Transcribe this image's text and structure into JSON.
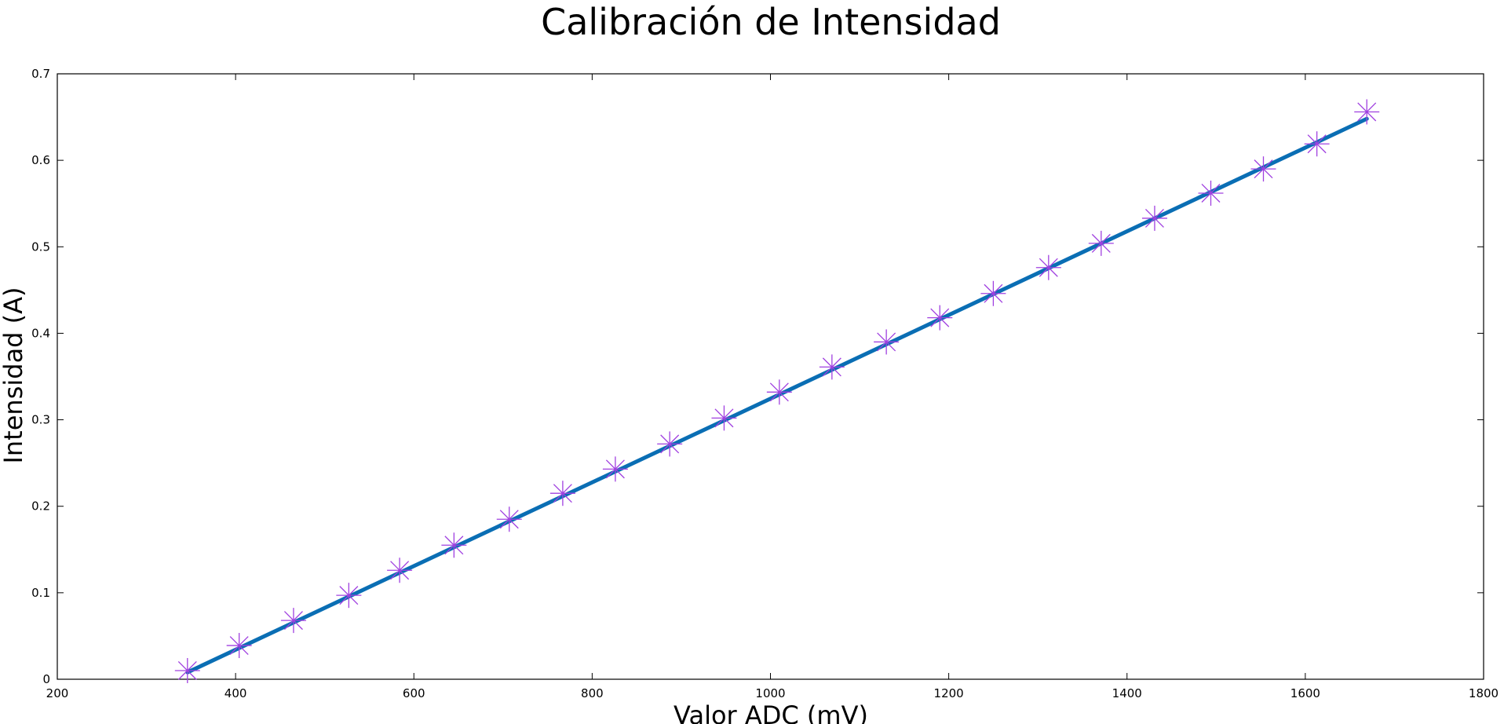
{
  "chart_data": {
    "type": "scatter",
    "title": "Calibración de Intensidad",
    "xlabel": "Valor ADC (mV)",
    "ylabel": "Intensidad (A)",
    "xlim": [
      200,
      1800
    ],
    "ylim": [
      0,
      0.7
    ],
    "x_ticks": [
      "200",
      "400",
      "600",
      "800",
      "1000",
      "1200",
      "1400",
      "1600",
      "1800"
    ],
    "y_ticks": [
      "0",
      "0.1",
      "0.2",
      "0.3",
      "0.4",
      "0.5",
      "0.6",
      "0.7"
    ],
    "grid": false,
    "series": [
      {
        "type": "scatter",
        "marker": "asterisk",
        "color": "#a040e0",
        "x": [
          346,
          404,
          465,
          527,
          584,
          645,
          707,
          767,
          826,
          887,
          948,
          1010,
          1069,
          1130,
          1190,
          1250,
          1312,
          1371,
          1431,
          1494,
          1553,
          1613,
          1669
        ],
        "y": [
          0.01,
          0.039,
          0.068,
          0.097,
          0.126,
          0.155,
          0.185,
          0.215,
          0.243,
          0.272,
          0.302,
          0.332,
          0.361,
          0.39,
          0.418,
          0.446,
          0.476,
          0.504,
          0.533,
          0.562,
          0.59,
          0.619,
          0.656
        ]
      },
      {
        "type": "line",
        "color": "#0a6eb4",
        "x": [
          346,
          1669
        ],
        "y": [
          0.008,
          0.648
        ]
      }
    ]
  }
}
